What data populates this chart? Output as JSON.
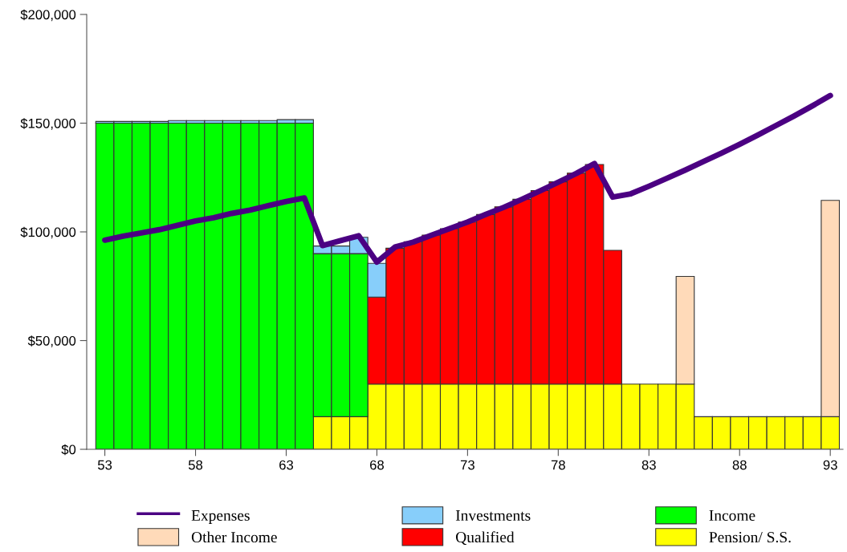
{
  "chart_data": {
    "type": "bar",
    "stacked": true,
    "x": [
      53,
      54,
      55,
      56,
      57,
      58,
      59,
      60,
      61,
      62,
      63,
      64,
      65,
      66,
      67,
      68,
      69,
      70,
      71,
      72,
      73,
      74,
      75,
      76,
      77,
      78,
      79,
      80,
      81,
      82,
      83,
      84,
      85,
      86,
      87,
      88,
      89,
      90,
      91,
      92,
      93
    ],
    "xlim": [
      52,
      93.7
    ],
    "xticks": [
      53,
      58,
      63,
      68,
      73,
      78,
      83,
      88,
      93
    ],
    "ylim": [
      0,
      200000
    ],
    "yticks": [
      {
        "value": 0,
        "label": "$0"
      },
      {
        "value": 50000,
        "label": "$50,000"
      },
      {
        "value": 100000,
        "label": "$100,000"
      },
      {
        "value": 150000,
        "label": "$150,000"
      },
      {
        "value": 200000,
        "label": "$200,000"
      }
    ],
    "grid": false,
    "legend": "bottom",
    "series": [
      {
        "name": "Expenses",
        "type": "line",
        "color": "#4b0082",
        "values": [
          96200,
          98000,
          99500,
          101000,
          103000,
          105000,
          106500,
          108500,
          110000,
          112000,
          114000,
          115600,
          93700,
          96000,
          98200,
          86100,
          93000,
          95300,
          98400,
          101500,
          104500,
          108000,
          111300,
          115000,
          118900,
          122800,
          126900,
          131400,
          116000,
          117500,
          121000,
          124700,
          128400,
          132300,
          136200,
          140300,
          144500,
          148900,
          153300,
          157900,
          162700
        ]
      },
      {
        "name": "Pension/ S.S.",
        "color": "#ffff00",
        "values": [
          null,
          null,
          null,
          null,
          null,
          null,
          null,
          null,
          null,
          null,
          null,
          null,
          15000,
          15000,
          15000,
          30000,
          30000,
          30000,
          30000,
          30000,
          30000,
          30000,
          30000,
          30000,
          30000,
          30000,
          30000,
          30000,
          30000,
          30000,
          30000,
          30000,
          30000,
          15000,
          15000,
          15000,
          15000,
          15000,
          15000,
          15000,
          15000
        ]
      },
      {
        "name": "Income",
        "color": "#00ff00",
        "values": [
          150000,
          150000,
          150000,
          150000,
          150000,
          150000,
          150000,
          150000,
          150000,
          150000,
          150000,
          150000,
          75000,
          75000,
          75000,
          null,
          null,
          null,
          null,
          null,
          null,
          null,
          null,
          null,
          null,
          null,
          null,
          null,
          null,
          null,
          null,
          null,
          null,
          null,
          null,
          null,
          null,
          null,
          null,
          null,
          null
        ]
      },
      {
        "name": "Qualified",
        "color": "#ff0000",
        "values": [
          null,
          null,
          null,
          null,
          null,
          null,
          null,
          null,
          null,
          null,
          null,
          null,
          null,
          null,
          null,
          40000,
          62500,
          65500,
          68500,
          71500,
          74500,
          78000,
          81500,
          85000,
          89000,
          93000,
          97000,
          101000,
          61500,
          null,
          null,
          null,
          null,
          null,
          null,
          null,
          null,
          null,
          null,
          null,
          null
        ]
      },
      {
        "name": "Investments",
        "color": "#87cefa",
        "values": [
          800,
          800,
          800,
          800,
          1200,
          1200,
          1200,
          1200,
          1200,
          1200,
          1600,
          1600,
          3500,
          3500,
          7500,
          15500,
          null,
          null,
          null,
          null,
          null,
          null,
          null,
          null,
          null,
          null,
          null,
          null,
          null,
          null,
          null,
          null,
          null,
          null,
          null,
          null,
          null,
          null,
          null,
          null,
          null
        ]
      },
      {
        "name": "Other Income",
        "color": "#ffdab9",
        "values": [
          null,
          null,
          null,
          null,
          null,
          null,
          null,
          null,
          null,
          null,
          null,
          null,
          null,
          null,
          null,
          null,
          null,
          null,
          null,
          null,
          null,
          null,
          null,
          null,
          null,
          null,
          null,
          null,
          null,
          null,
          null,
          null,
          49500,
          null,
          null,
          null,
          null,
          null,
          null,
          null,
          99500
        ]
      }
    ]
  }
}
